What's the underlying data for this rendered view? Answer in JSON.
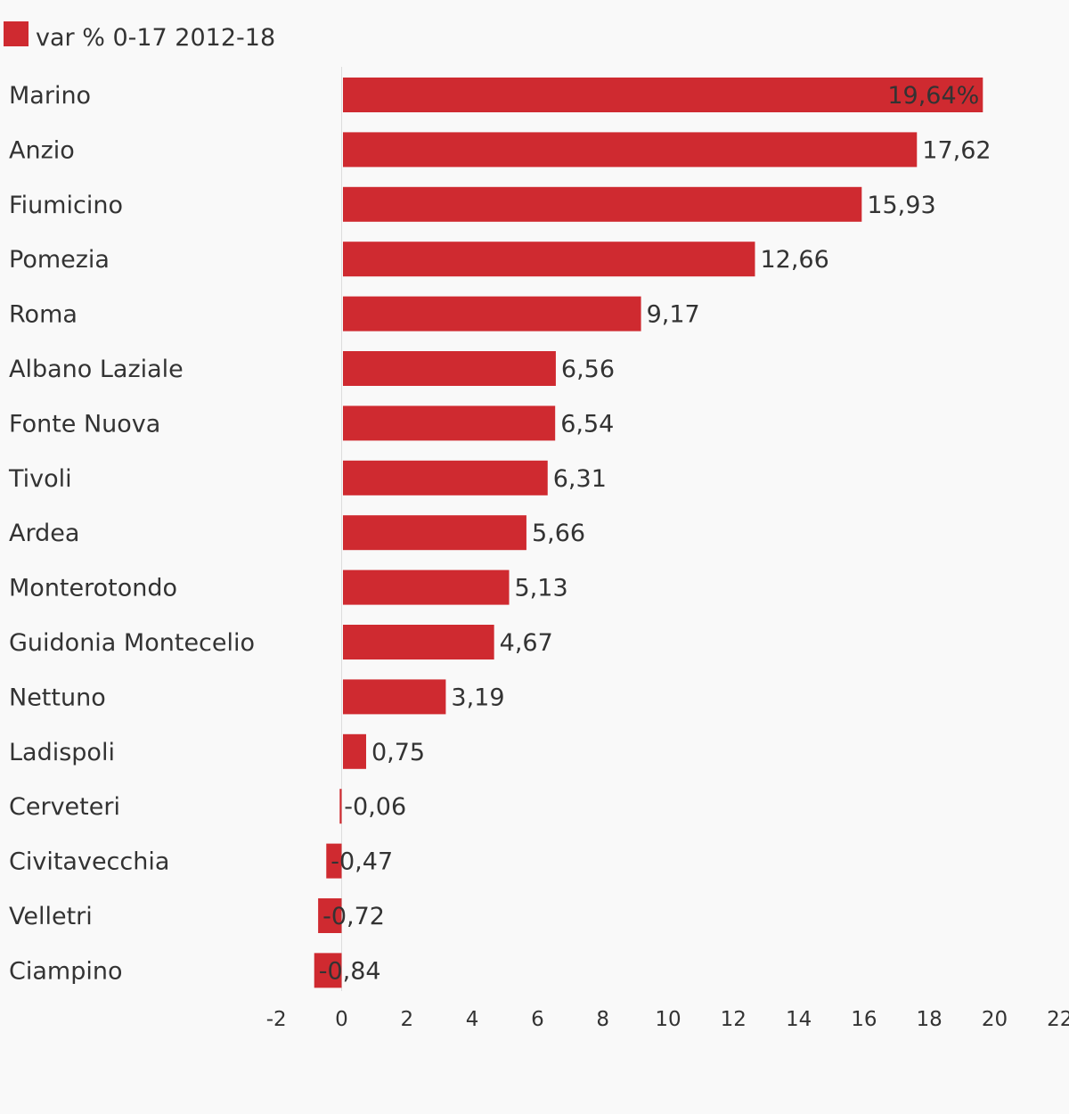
{
  "chart_data": {
    "type": "bar",
    "orientation": "horizontal",
    "legend": {
      "label": "var % 0-17 2012-18",
      "color": "#cf2a30",
      "placement": "top-left"
    },
    "bar_color": "#cf2a30",
    "categories": [
      "Marino",
      "Anzio",
      "Fiumicino",
      "Pomezia",
      "Roma",
      "Albano Laziale",
      "Fonte Nuova",
      "Tivoli",
      "Ardea",
      "Monterotondo",
      "Guidonia Montecelio",
      "Nettuno",
      "Ladispoli",
      "Cerveteri",
      "Civitavecchia",
      "Velletri",
      "Ciampino"
    ],
    "series": [
      {
        "name": "var % 0-17 2012-18",
        "values": [
          19.64,
          17.62,
          15.93,
          12.66,
          9.17,
          6.56,
          6.54,
          6.31,
          5.66,
          5.13,
          4.67,
          3.19,
          0.75,
          -0.06,
          -0.47,
          -0.72,
          -0.84
        ],
        "data_labels": [
          "19,64%",
          "17,62",
          "15,93",
          "12,66",
          "9,17",
          "6,56",
          "6,54",
          "6,31",
          "5,66",
          "5,13",
          "4,67",
          "3,19",
          "0,75",
          "-0,06",
          "-0,47",
          "-0,72",
          "-0,84"
        ]
      }
    ],
    "xlim": [
      -2,
      22
    ],
    "xticks": [
      "-2",
      "0",
      "2",
      "4",
      "6",
      "8",
      "10",
      "12",
      "14",
      "16",
      "18",
      "20",
      "22"
    ],
    "grid": false
  }
}
